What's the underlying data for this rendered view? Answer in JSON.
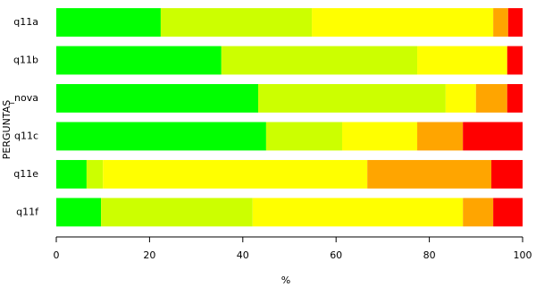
{
  "chart_data": {
    "type": "stacked-bar-horizontal",
    "x_label": "%",
    "y_label": "PERGUNTAS",
    "categories": [
      "q11a",
      "q11b",
      "_nova",
      "q11c",
      "q11e",
      "q11f"
    ],
    "series": [
      {
        "color": "#00ff00",
        "values": [
          22.4,
          35.4,
          43.3,
          45,
          6.5,
          9.6
        ]
      },
      {
        "color": "#ccff00",
        "values": [
          32.4,
          42,
          40.2,
          16.3,
          3.5,
          32.5
        ]
      },
      {
        "color": "#ffff00",
        "values": [
          38.9,
          19.3,
          6.5,
          16.1,
          56.7,
          45.1
        ]
      },
      {
        "color": "#ffa500",
        "values": [
          3.2,
          0,
          6.7,
          9.8,
          26.6,
          6.5
        ]
      },
      {
        "color": "#ff0000",
        "values": [
          3.1,
          3.3,
          3.3,
          12.8,
          6.7,
          6.3
        ]
      }
    ],
    "xlim": [
      0,
      100
    ],
    "xticks": [
      0,
      20,
      40,
      60,
      80,
      100
    ]
  }
}
